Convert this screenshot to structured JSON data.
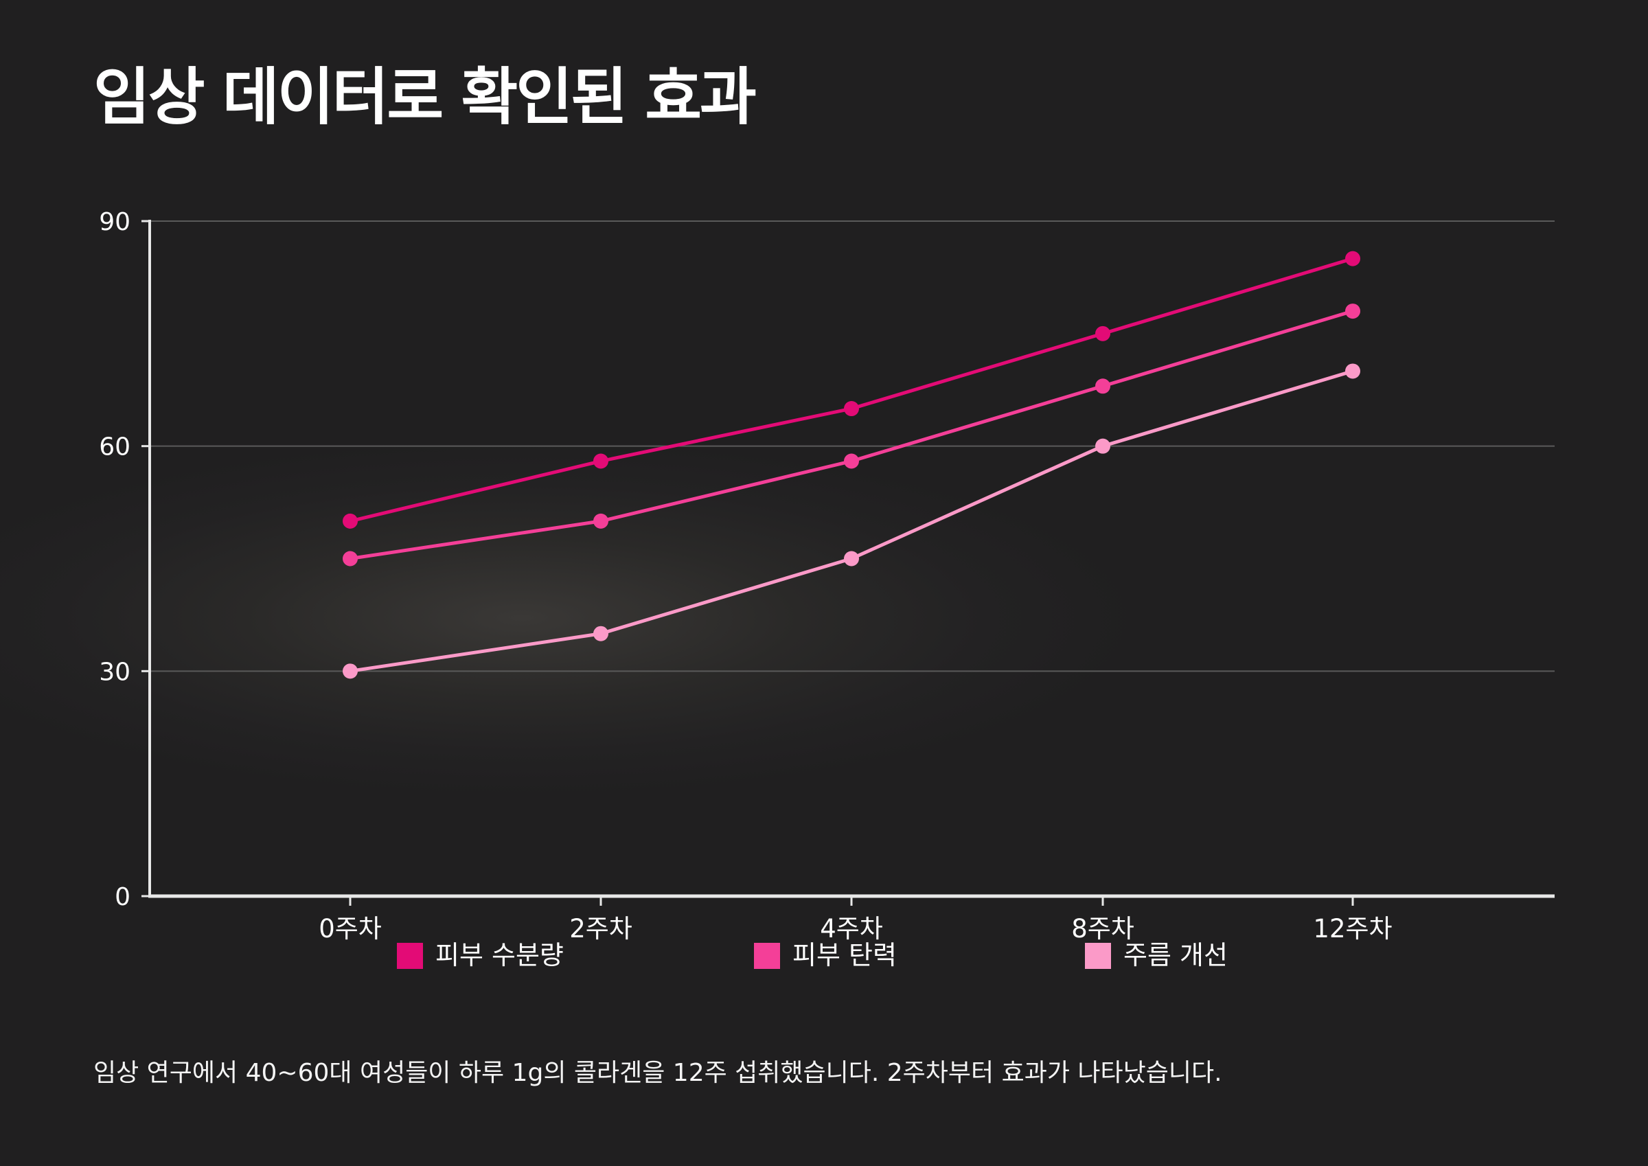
{
  "title": "임상 데이터로 확인된 효과",
  "footnote": "임상 연구에서 40~60대 여성들이 하루 1g의 콜라겐을 12주 섭취했습니다. 2주차부터 효과가 나타났습니다.",
  "colors": {
    "background": "#222122",
    "grid": "#5a5a5a",
    "axis": "#e8e8e8"
  },
  "chart_data": {
    "type": "line",
    "categories": [
      "0주차",
      "2주차",
      "4주차",
      "8주차",
      "12주차"
    ],
    "series": [
      {
        "name": "피부 수분량",
        "color": "#e30b76",
        "values": [
          50,
          58,
          65,
          75,
          85
        ]
      },
      {
        "name": "피부 탄력",
        "color": "#f43f98",
        "values": [
          45,
          50,
          58,
          68,
          78
        ]
      },
      {
        "name": "주름 개선",
        "color": "#fb9ac8",
        "values": [
          30,
          35,
          45,
          60,
          70
        ]
      }
    ],
    "ylim": [
      0,
      90
    ],
    "yticks": [
      0,
      30,
      60,
      90
    ],
    "grid": true,
    "legend": "bottom"
  }
}
